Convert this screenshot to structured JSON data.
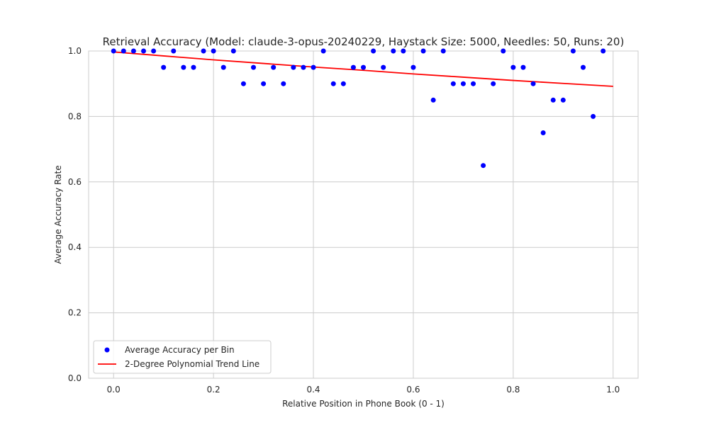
{
  "chart_data": {
    "type": "scatter",
    "title": "Retrieval Accuracy (Model: claude-3-opus-20240229, Haystack Size: 5000, Needles: 50, Runs: 20)",
    "xlabel": "Relative Position in Phone Book (0 - 1)",
    "ylabel": "Average Accuracy Rate",
    "xlim": [
      -0.05,
      1.05
    ],
    "ylim": [
      0.0,
      1.0
    ],
    "xticks": [
      "0.0",
      "0.2",
      "0.4",
      "0.6",
      "0.8",
      "1.0"
    ],
    "yticks": [
      "0.0",
      "0.2",
      "0.4",
      "0.6",
      "0.8",
      "1.0"
    ],
    "grid": true,
    "legend_position": "lower-left",
    "series": [
      {
        "name": "Average Accuracy per Bin",
        "kind": "scatter",
        "color": "#0000ff",
        "x": [
          0.0,
          0.02,
          0.04,
          0.06,
          0.08,
          0.1,
          0.12,
          0.14,
          0.16,
          0.18,
          0.2,
          0.22,
          0.24,
          0.26,
          0.28,
          0.3,
          0.32,
          0.34,
          0.36,
          0.38,
          0.4,
          0.42,
          0.44,
          0.46,
          0.48,
          0.5,
          0.52,
          0.54,
          0.56,
          0.58,
          0.6,
          0.62,
          0.64,
          0.66,
          0.68,
          0.7,
          0.72,
          0.74,
          0.76,
          0.78,
          0.8,
          0.82,
          0.84,
          0.86,
          0.88,
          0.9,
          0.92,
          0.94,
          0.96,
          0.98
        ],
        "y": [
          1.0,
          1.0,
          1.0,
          1.0,
          1.0,
          0.95,
          1.0,
          0.95,
          0.95,
          1.0,
          1.0,
          0.95,
          1.0,
          0.9,
          0.95,
          0.9,
          0.95,
          0.9,
          0.95,
          0.95,
          0.95,
          1.0,
          0.9,
          0.9,
          0.95,
          0.95,
          1.0,
          0.95,
          1.0,
          1.0,
          0.95,
          1.0,
          0.85,
          1.0,
          0.9,
          0.9,
          0.9,
          0.65,
          0.9,
          1.0,
          0.95,
          0.95,
          0.9,
          0.75,
          0.85,
          0.85,
          1.0,
          0.95,
          0.8,
          1.0
        ]
      },
      {
        "name": "2-Degree Polynomial Trend Line",
        "kind": "line",
        "color": "#ff0000",
        "x": [
          0.0,
          0.1,
          0.2,
          0.3,
          0.4,
          0.5,
          0.6,
          0.7,
          0.8,
          0.9,
          1.0
        ],
        "y": [
          0.997,
          0.985,
          0.973,
          0.962,
          0.951,
          0.941,
          0.93,
          0.92,
          0.91,
          0.901,
          0.892
        ]
      }
    ]
  }
}
